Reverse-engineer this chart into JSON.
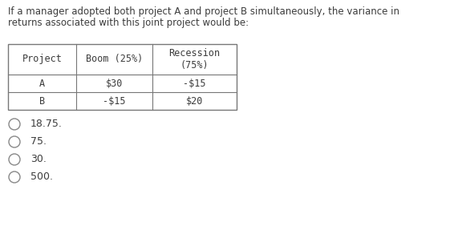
{
  "title_line1": "If a manager adopted both project A and project B simultaneously, the variance in",
  "title_line2": "returns associated with this joint project would be:",
  "col_headers": [
    "Project",
    "Boom (25%)",
    "Recession\n(75%)"
  ],
  "rows": [
    [
      "A",
      "$30",
      "-$15"
    ],
    [
      "B",
      "-$15",
      "$20"
    ]
  ],
  "options": [
    "18.75.",
    "75.",
    "30.",
    "500."
  ],
  "font_color": "#3c3c3c",
  "bg_color": "#ffffff",
  "table_font": "monospace",
  "text_font": "sans-serif",
  "title_fontsize": 8.5,
  "table_fontsize": 8.5,
  "option_fontsize": 9.0
}
